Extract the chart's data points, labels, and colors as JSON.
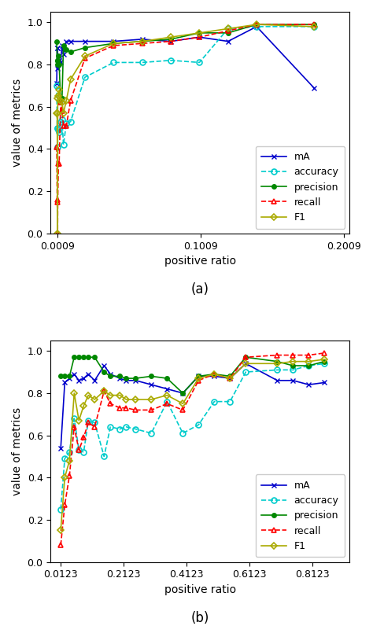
{
  "plot_a": {
    "x": [
      0.0003,
      0.0006,
      0.0009,
      0.001,
      0.0015,
      0.002,
      0.003,
      0.004,
      0.005,
      0.007,
      0.01,
      0.02,
      0.04,
      0.06,
      0.08,
      0.1,
      0.12,
      0.14,
      0.18
    ],
    "mA": [
      0.71,
      0.88,
      0.88,
      0.78,
      0.8,
      0.82,
      0.81,
      0.89,
      0.85,
      0.91,
      0.91,
      0.91,
      0.91,
      0.92,
      0.91,
      0.93,
      0.91,
      0.98,
      0.69
    ],
    "accuracy": [
      0.7,
      0.5,
      0.41,
      0.5,
      0.49,
      0.48,
      0.53,
      0.54,
      0.42,
      0.52,
      0.53,
      0.74,
      0.81,
      0.81,
      0.82,
      0.81,
      0.97,
      0.98,
      0.98
    ],
    "precision": [
      0.91,
      0.82,
      0.82,
      0.8,
      0.84,
      0.8,
      0.63,
      0.64,
      0.89,
      0.87,
      0.86,
      0.88,
      0.9,
      0.91,
      0.92,
      0.95,
      0.95,
      0.99,
      0.99
    ],
    "recall": [
      0.41,
      0.15,
      0.0,
      0.16,
      0.33,
      0.33,
      0.62,
      0.58,
      0.51,
      0.51,
      0.63,
      0.83,
      0.89,
      0.9,
      0.91,
      0.93,
      0.96,
      0.99,
      0.99
    ],
    "F1": [
      0.57,
      0.57,
      0.0,
      0.64,
      0.65,
      0.68,
      0.63,
      0.62,
      0.57,
      0.63,
      0.73,
      0.84,
      0.9,
      0.91,
      0.93,
      0.95,
      0.97,
      0.99,
      0.98
    ],
    "xticks": [
      0.0009,
      0.1009,
      0.2009
    ],
    "xticklabels": [
      "0.0009",
      "0.1009",
      "0.2009"
    ],
    "xlabel": "positive ratio",
    "ylabel": "value of metrics",
    "ylim": [
      0.0,
      1.05
    ],
    "xlim": [
      -0.004,
      0.205
    ],
    "label": "(a)"
  },
  "plot_b": {
    "x": [
      0.0123,
      0.025,
      0.04,
      0.055,
      0.07,
      0.085,
      0.1,
      0.12,
      0.15,
      0.17,
      0.2,
      0.22,
      0.25,
      0.3,
      0.35,
      0.4,
      0.45,
      0.5,
      0.55,
      0.6,
      0.7,
      0.75,
      0.8,
      0.85
    ],
    "mA": [
      0.54,
      0.85,
      0.87,
      0.89,
      0.86,
      0.87,
      0.89,
      0.86,
      0.93,
      0.89,
      0.87,
      0.86,
      0.86,
      0.84,
      0.82,
      0.8,
      0.88,
      0.88,
      0.87,
      0.94,
      0.86,
      0.86,
      0.84,
      0.85
    ],
    "accuracy": [
      0.25,
      0.49,
      0.52,
      0.68,
      0.53,
      0.52,
      0.67,
      0.66,
      0.5,
      0.64,
      0.63,
      0.64,
      0.63,
      0.61,
      0.76,
      0.61,
      0.65,
      0.76,
      0.76,
      0.9,
      0.91,
      0.91,
      0.93,
      0.94
    ],
    "precision": [
      0.88,
      0.88,
      0.88,
      0.97,
      0.97,
      0.97,
      0.97,
      0.97,
      0.9,
      0.88,
      0.88,
      0.87,
      0.87,
      0.88,
      0.87,
      0.8,
      0.88,
      0.89,
      0.88,
      0.97,
      0.95,
      0.93,
      0.93,
      0.95
    ],
    "recall": [
      0.08,
      0.27,
      0.41,
      0.64,
      0.53,
      0.59,
      0.66,
      0.64,
      0.81,
      0.75,
      0.73,
      0.73,
      0.72,
      0.72,
      0.75,
      0.72,
      0.86,
      0.89,
      0.87,
      0.97,
      0.98,
      0.98,
      0.98,
      0.99
    ],
    "F1": [
      0.15,
      0.4,
      0.48,
      0.8,
      0.67,
      0.74,
      0.79,
      0.77,
      0.81,
      0.79,
      0.79,
      0.77,
      0.77,
      0.77,
      0.79,
      0.75,
      0.87,
      0.89,
      0.87,
      0.94,
      0.94,
      0.95,
      0.95,
      0.96
    ],
    "xticks": [
      0.0123,
      0.2123,
      0.4123,
      0.6123,
      0.8123
    ],
    "xticklabels": [
      "0.0123",
      "0.2123",
      "0.4123",
      "0.6123",
      "0.8123"
    ],
    "xlabel": "positive ratio",
    "ylabel": "value of metrics",
    "ylim": [
      0.0,
      1.05
    ],
    "xlim": [
      -0.02,
      0.93
    ],
    "label": "(b)"
  },
  "colors": {
    "mA": "#0000cc",
    "accuracy": "#00cccc",
    "precision": "#008800",
    "recall": "#ff0000",
    "F1": "#aaaa00"
  }
}
